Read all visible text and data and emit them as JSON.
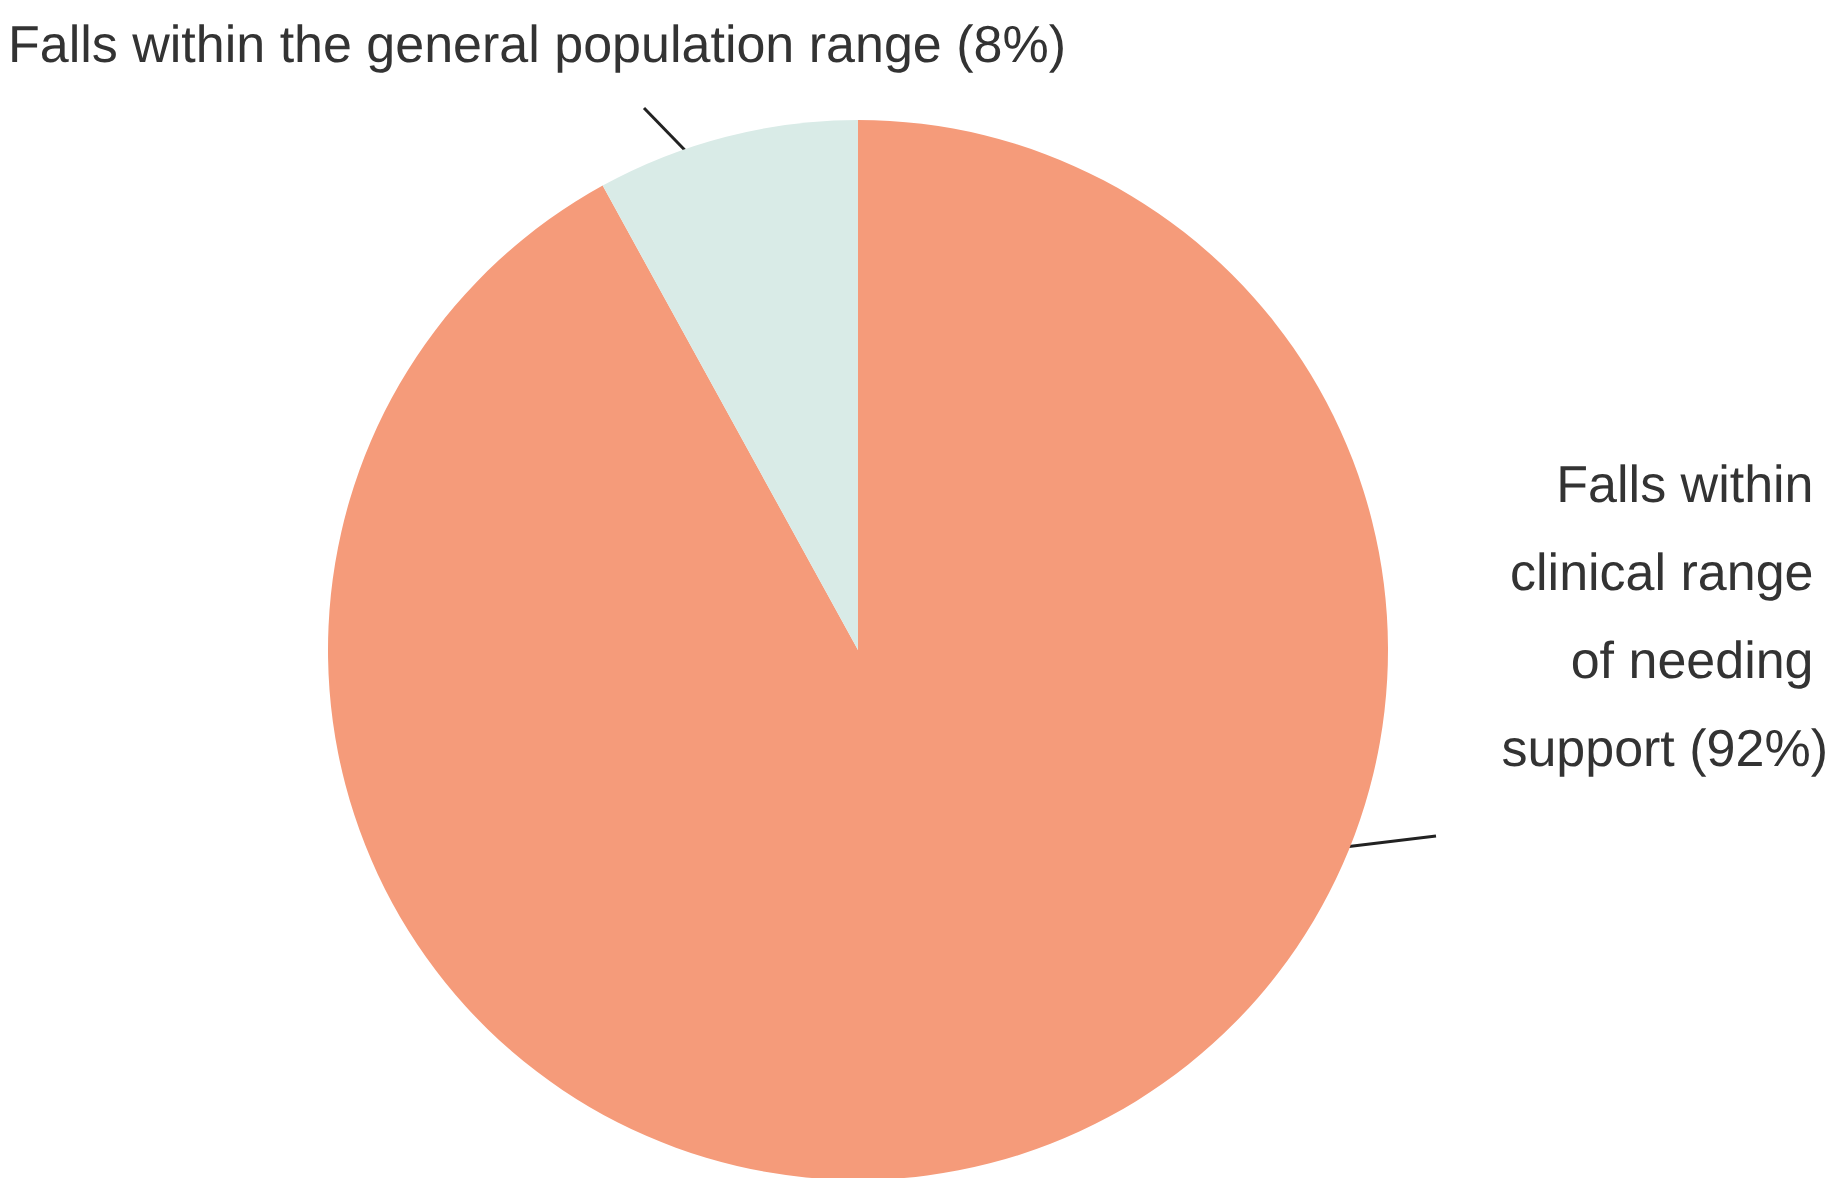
{
  "chart_data": {
    "type": "pie",
    "categories": [
      "Falls within clinical range of needing support (92%)",
      "Falls within the general population range (8%)"
    ],
    "values": [
      92,
      8
    ],
    "colors": [
      "#f59b7a",
      "#d9ebe7"
    ],
    "legend": false
  }
}
